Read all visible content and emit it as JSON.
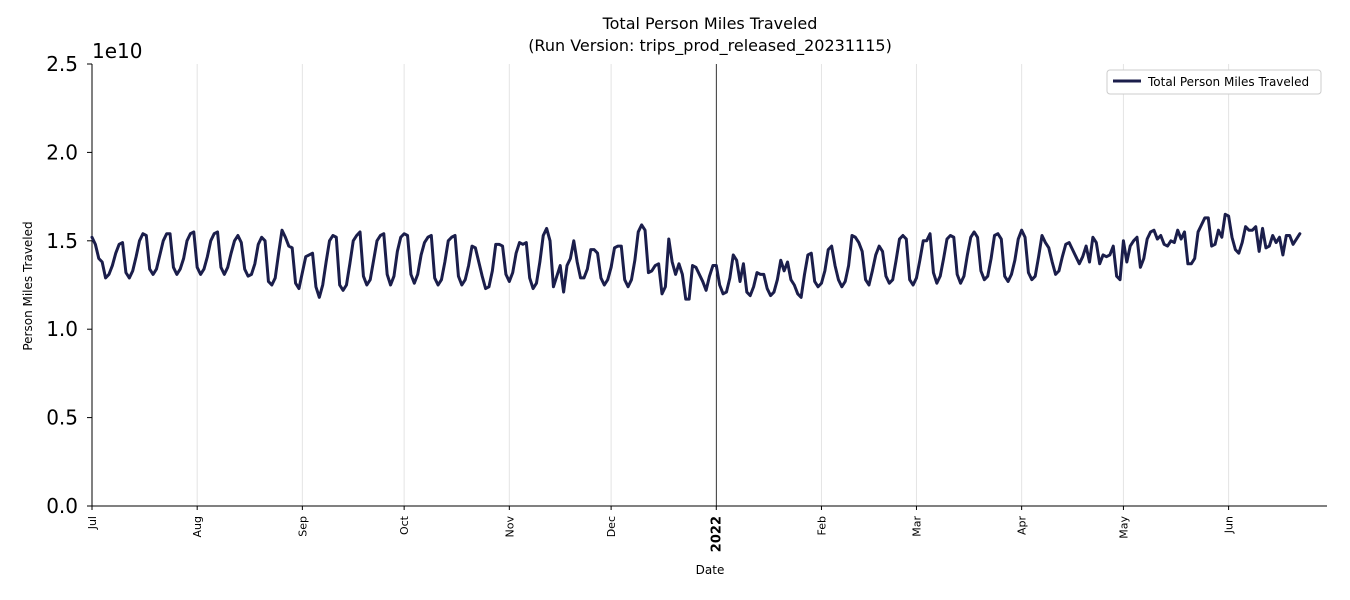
{
  "chart_data": {
    "type": "line",
    "title_line1": "Total Person Miles Traveled",
    "title_line2": "(Run Version: trips_prod_released_20231115)",
    "xlabel": "Date",
    "ylabel": "Person Miles Traveled",
    "y_offset_label": "1e10",
    "ylim": [
      0.0,
      2.5
    ],
    "y_ticks": [
      0.0,
      0.5,
      1.0,
      1.5,
      2.0,
      2.5
    ],
    "y_tick_labels": [
      "0.0",
      "0.5",
      "1.0",
      "1.5",
      "2.0",
      "2.5"
    ],
    "x_range_days": [
      0,
      364
    ],
    "x_ticks": [
      {
        "label": "Jul",
        "day": 0,
        "bold": false
      },
      {
        "label": "Aug",
        "day": 31,
        "bold": false
      },
      {
        "label": "Sep",
        "day": 62,
        "bold": false
      },
      {
        "label": "Oct",
        "day": 92,
        "bold": false
      },
      {
        "label": "Nov",
        "day": 123,
        "bold": false
      },
      {
        "label": "Dec",
        "day": 153,
        "bold": false
      },
      {
        "label": "2022",
        "day": 184,
        "bold": true
      },
      {
        "label": "Feb",
        "day": 215,
        "bold": false
      },
      {
        "label": "Mar",
        "day": 243,
        "bold": false
      },
      {
        "label": "Apr",
        "day": 274,
        "bold": false
      },
      {
        "label": "May",
        "day": 304,
        "bold": false
      },
      {
        "label": "Jun",
        "day": 335,
        "bold": false
      }
    ],
    "year_divider_day": 184,
    "grid": true,
    "legend": {
      "position": "top-right",
      "entries": [
        "Total Person Miles Traveled"
      ]
    },
    "series": [
      {
        "name": "Total Person Miles Traveled",
        "color": "#1b1e4b",
        "x_start": "2021-07-01",
        "step": "1 day",
        "unit": "1e10",
        "values": [
          1.52,
          1.48,
          1.4,
          1.38,
          1.29,
          1.31,
          1.36,
          1.43,
          1.48,
          1.49,
          1.32,
          1.29,
          1.33,
          1.41,
          1.5,
          1.54,
          1.53,
          1.34,
          1.31,
          1.34,
          1.42,
          1.5,
          1.54,
          1.54,
          1.35,
          1.31,
          1.34,
          1.4,
          1.5,
          1.54,
          1.55,
          1.35,
          1.31,
          1.34,
          1.41,
          1.5,
          1.54,
          1.55,
          1.35,
          1.31,
          1.35,
          1.43,
          1.5,
          1.53,
          1.49,
          1.34,
          1.3,
          1.31,
          1.37,
          1.48,
          1.52,
          1.5,
          1.27,
          1.25,
          1.29,
          1.43,
          1.56,
          1.52,
          1.47,
          1.46,
          1.26,
          1.23,
          1.32,
          1.41,
          1.42,
          1.43,
          1.24,
          1.18,
          1.25,
          1.38,
          1.5,
          1.53,
          1.52,
          1.25,
          1.22,
          1.25,
          1.37,
          1.5,
          1.53,
          1.55,
          1.3,
          1.25,
          1.28,
          1.39,
          1.5,
          1.53,
          1.54,
          1.31,
          1.25,
          1.3,
          1.44,
          1.52,
          1.54,
          1.53,
          1.31,
          1.26,
          1.31,
          1.42,
          1.49,
          1.52,
          1.53,
          1.29,
          1.25,
          1.28,
          1.38,
          1.5,
          1.52,
          1.53,
          1.3,
          1.25,
          1.28,
          1.36,
          1.47,
          1.46,
          1.38,
          1.3,
          1.23,
          1.24,
          1.33,
          1.48,
          1.48,
          1.47,
          1.31,
          1.27,
          1.32,
          1.43,
          1.49,
          1.48,
          1.49,
          1.29,
          1.23,
          1.26,
          1.38,
          1.53,
          1.57,
          1.5,
          1.24,
          1.3,
          1.36,
          1.21,
          1.36,
          1.4,
          1.5,
          1.38,
          1.29,
          1.29,
          1.34,
          1.45,
          1.45,
          1.43,
          1.29,
          1.25,
          1.28,
          1.35,
          1.46,
          1.47,
          1.47,
          1.28,
          1.24,
          1.28,
          1.39,
          1.55,
          1.59,
          1.56,
          1.32,
          1.33,
          1.36,
          1.37,
          1.2,
          1.24,
          1.51,
          1.38,
          1.31,
          1.37,
          1.31,
          1.17,
          1.17,
          1.36,
          1.35,
          1.31,
          1.27,
          1.22,
          1.3,
          1.36,
          1.36,
          1.25,
          1.2,
          1.21,
          1.29,
          1.42,
          1.39,
          1.27,
          1.37,
          1.21,
          1.19,
          1.24,
          1.32,
          1.31,
          1.31,
          1.23,
          1.19,
          1.21,
          1.28,
          1.39,
          1.33,
          1.38,
          1.28,
          1.25,
          1.2,
          1.18,
          1.31,
          1.42,
          1.43,
          1.27,
          1.24,
          1.26,
          1.33,
          1.45,
          1.47,
          1.36,
          1.28,
          1.24,
          1.27,
          1.36,
          1.53,
          1.52,
          1.49,
          1.44,
          1.28,
          1.25,
          1.33,
          1.42,
          1.47,
          1.44,
          1.3,
          1.26,
          1.28,
          1.39,
          1.51,
          1.53,
          1.51,
          1.28,
          1.25,
          1.29,
          1.39,
          1.5,
          1.5,
          1.54,
          1.32,
          1.26,
          1.3,
          1.4,
          1.51,
          1.53,
          1.52,
          1.31,
          1.26,
          1.3,
          1.42,
          1.52,
          1.55,
          1.52,
          1.33,
          1.28,
          1.3,
          1.4,
          1.53,
          1.54,
          1.51,
          1.3,
          1.27,
          1.31,
          1.39,
          1.51,
          1.56,
          1.52,
          1.32,
          1.28,
          1.3,
          1.41,
          1.53,
          1.49,
          1.46,
          1.38,
          1.31,
          1.33,
          1.41,
          1.48,
          1.49,
          1.45,
          1.41,
          1.37,
          1.41,
          1.47,
          1.38,
          1.52,
          1.49,
          1.37,
          1.42,
          1.41,
          1.42,
          1.47,
          1.3,
          1.28,
          1.5,
          1.38,
          1.47,
          1.5,
          1.52,
          1.35,
          1.4,
          1.51,
          1.55,
          1.56,
          1.51,
          1.53,
          1.48,
          1.47,
          1.5,
          1.49,
          1.56,
          1.51,
          1.55,
          1.37,
          1.37,
          1.4,
          1.55,
          1.59,
          1.63,
          1.63,
          1.47,
          1.48,
          1.56,
          1.52,
          1.65,
          1.64,
          1.52,
          1.45,
          1.43,
          1.49,
          1.58,
          1.56,
          1.56,
          1.58,
          1.44,
          1.57,
          1.46,
          1.47,
          1.53,
          1.49,
          1.52,
          1.42,
          1.53,
          1.53,
          1.48,
          1.51,
          1.54
        ]
      }
    ]
  }
}
